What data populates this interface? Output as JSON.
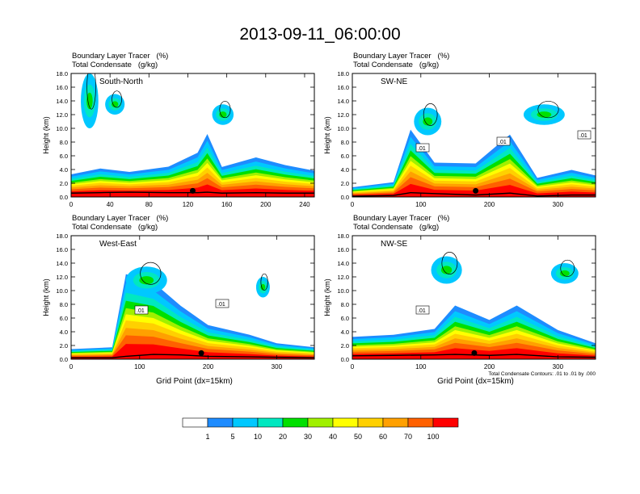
{
  "figure": {
    "title": "2013-09-11_06:00:00"
  },
  "chart_data": [
    {
      "type": "heatmap",
      "panel_label": "South-North",
      "header_line1": "Boundary Layer Tracer   (%)",
      "header_line2": "Total Condensate   (g/kg)",
      "xlabel": "",
      "ylabel": "Height (km)",
      "xlim": [
        0,
        250
      ],
      "ylim": [
        0,
        18
      ],
      "xticks": [
        0,
        40,
        80,
        120,
        160,
        200,
        240
      ],
      "yticks": [
        0,
        2,
        4,
        6,
        8,
        10,
        12,
        14,
        16,
        18
      ],
      "ytick_labels": [
        "0.0",
        "2.0",
        "4.0",
        "6.0",
        "8.0",
        "10.0",
        "12.0",
        "14.0",
        "16.0",
        "18.0"
      ],
      "site_marker_x": 125,
      "features": [
        {
          "x": 0,
          "base": 1.6,
          "top": 2.2
        },
        {
          "x": 30,
          "base": 1.8,
          "top": 2.8
        },
        {
          "x": 60,
          "base": 2.0,
          "top": 2.4
        },
        {
          "x": 100,
          "base": 1.8,
          "top": 3.0
        },
        {
          "x": 130,
          "base": 1.8,
          "top": 4.5
        },
        {
          "x": 140,
          "base": 2.0,
          "top": 6.5
        },
        {
          "x": 155,
          "base": 1.6,
          "top": 3.0
        },
        {
          "x": 190,
          "base": 1.8,
          "top": 4.0
        },
        {
          "x": 220,
          "base": 1.6,
          "top": 3.2
        },
        {
          "x": 250,
          "base": 1.6,
          "top": 2.6
        }
      ],
      "anvils": [
        {
          "x": 10,
          "y": 10,
          "w": 18,
          "h": 8
        },
        {
          "x": 145,
          "y": 10.5,
          "w": 22,
          "h": 3
        },
        {
          "x": 35,
          "y": 12,
          "w": 20,
          "h": 3
        }
      ]
    },
    {
      "type": "heatmap",
      "panel_label": "SW-NE",
      "header_line1": "Boundary Layer Tracer   (%)",
      "header_line2": "Total Condensate   (g/kg)",
      "xlabel": "",
      "ylabel": "Height (km)",
      "xlim": [
        0,
        355
      ],
      "ylim": [
        0,
        18
      ],
      "xticks": [
        0,
        100,
        200,
        300
      ],
      "yticks": [
        0,
        2,
        4,
        6,
        8,
        10,
        12,
        14,
        16,
        18
      ],
      "ytick_labels": [
        "0.0",
        "2.0",
        "4.0",
        "6.0",
        "8.0",
        "10.0",
        "12.0",
        "14.0",
        "16.0",
        "18.0"
      ],
      "site_marker_x": 180,
      "contour_labels": [
        ".01",
        ".01",
        ".01"
      ],
      "features": [
        {
          "x": 0,
          "base": 0.3,
          "top": 1.0
        },
        {
          "x": 60,
          "base": 0.6,
          "top": 1.5
        },
        {
          "x": 85,
          "base": 1.8,
          "top": 7.0
        },
        {
          "x": 120,
          "base": 1.4,
          "top": 3.5
        },
        {
          "x": 180,
          "base": 0.8,
          "top": 3.5
        },
        {
          "x": 230,
          "base": 1.6,
          "top": 6.5
        },
        {
          "x": 270,
          "base": 0.4,
          "top": 2.0
        },
        {
          "x": 320,
          "base": 0.8,
          "top": 2.8
        },
        {
          "x": 355,
          "base": 0.8,
          "top": 2.2
        }
      ],
      "anvils": [
        {
          "x": 90,
          "y": 9,
          "w": 40,
          "h": 4
        },
        {
          "x": 250,
          "y": 10.5,
          "w": 60,
          "h": 3
        }
      ]
    },
    {
      "type": "heatmap",
      "panel_label": "West-East",
      "header_line1": "Boundary Layer Tracer   (%)",
      "header_line2": "Total Condensate   (g/kg)",
      "xlabel": "Grid Point (dx=15km)",
      "ylabel": "Height (km)",
      "xlim": [
        0,
        355
      ],
      "ylim": [
        0,
        18
      ],
      "xticks": [
        0,
        100,
        200,
        300
      ],
      "yticks": [
        0,
        2,
        4,
        6,
        8,
        10,
        12,
        14,
        16,
        18
      ],
      "ytick_labels": [
        "0.0",
        "2.0",
        "4.0",
        "6.0",
        "8.0",
        "10.0",
        "12.0",
        "14.0",
        "16.0",
        "18.0"
      ],
      "site_marker_x": 190,
      "contour_labels": [
        ".01",
        ".01"
      ],
      "features": [
        {
          "x": 0,
          "base": 0.6,
          "top": 1.0
        },
        {
          "x": 60,
          "base": 0.6,
          "top": 1.2
        },
        {
          "x": 80,
          "base": 1.2,
          "top": 9.0
        },
        {
          "x": 120,
          "base": 2.0,
          "top": 8.0
        },
        {
          "x": 160,
          "base": 1.8,
          "top": 5.5
        },
        {
          "x": 200,
          "base": 1.2,
          "top": 3.5
        },
        {
          "x": 260,
          "base": 1.0,
          "top": 2.5
        },
        {
          "x": 300,
          "base": 0.8,
          "top": 1.6
        },
        {
          "x": 355,
          "base": 0.6,
          "top": 1.2
        }
      ],
      "anvils": [
        {
          "x": 80,
          "y": 9.5,
          "w": 60,
          "h": 4
        },
        {
          "x": 270,
          "y": 9,
          "w": 20,
          "h": 3
        }
      ]
    },
    {
      "type": "heatmap",
      "panel_label": "NW-SE",
      "header_line1": "Boundary Layer Tracer   (%)",
      "header_line2": "Total Condensate   (g/kg)",
      "xlabel": "Grid Point (dx=15km)",
      "ylabel": "Height (km)",
      "xlim": [
        0,
        355
      ],
      "ylim": [
        0,
        18
      ],
      "xticks": [
        0,
        100,
        200,
        300
      ],
      "yticks": [
        0,
        2,
        4,
        6,
        8,
        10,
        12,
        14,
        16,
        18
      ],
      "ytick_labels": [
        "0.0",
        "2.0",
        "4.0",
        "6.0",
        "8.0",
        "10.0",
        "12.0",
        "14.0",
        "16.0",
        "18.0"
      ],
      "site_marker_x": 178,
      "contour_labels": [
        ".01"
      ],
      "contour_note": "Total Condensate Contours: .01 to .01 by .000",
      "features": [
        {
          "x": 0,
          "base": 1.4,
          "top": 2.2
        },
        {
          "x": 60,
          "base": 1.6,
          "top": 2.4
        },
        {
          "x": 120,
          "base": 1.8,
          "top": 3.0
        },
        {
          "x": 150,
          "base": 2.0,
          "top": 5.5
        },
        {
          "x": 200,
          "base": 1.6,
          "top": 4.0
        },
        {
          "x": 240,
          "base": 2.0,
          "top": 5.5
        },
        {
          "x": 300,
          "base": 1.0,
          "top": 3.0
        },
        {
          "x": 355,
          "base": 0.8,
          "top": 1.6
        }
      ],
      "anvils": [
        {
          "x": 115,
          "y": 11,
          "w": 45,
          "h": 4
        },
        {
          "x": 290,
          "y": 11,
          "w": 40,
          "h": 3
        }
      ]
    }
  ],
  "colorbar": {
    "labels": [
      "1",
      "5",
      "10",
      "20",
      "30",
      "40",
      "50",
      "60",
      "70",
      "100"
    ],
    "colors": [
      "#ffffff",
      "#1e8cff",
      "#00c8ff",
      "#00e8c0",
      "#00e000",
      "#a0f000",
      "#ffff00",
      "#ffd000",
      "#ffa000",
      "#ff6000",
      "#ff0000"
    ]
  }
}
